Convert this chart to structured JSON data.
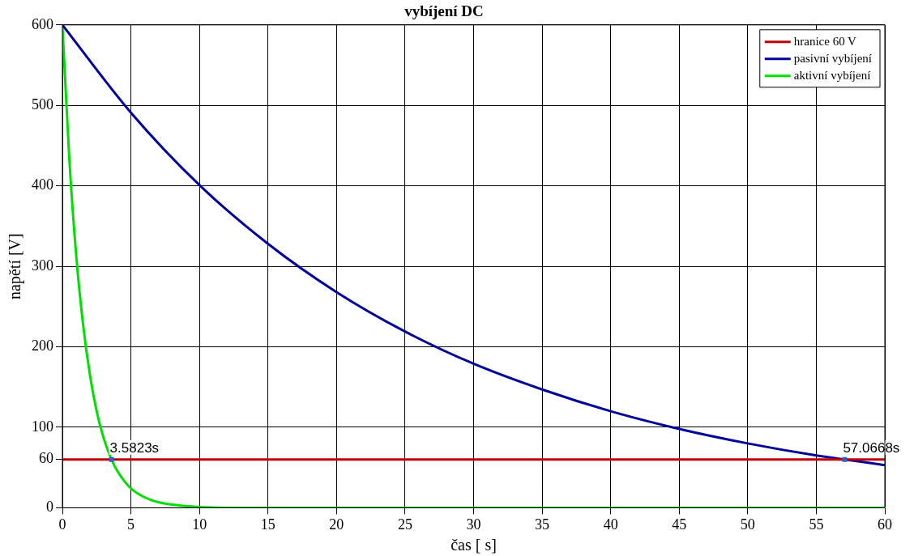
{
  "chart_data": {
    "type": "line",
    "title": "vybíjení DC",
    "xlabel": "čas [ s]",
    "ylabel": "napětí [V]",
    "xlim": [
      0,
      60
    ],
    "xticks": [
      0,
      5,
      10,
      15,
      20,
      25,
      30,
      35,
      40,
      45,
      50,
      55,
      60
    ],
    "ylim": [
      0,
      600
    ],
    "yticks": [
      0,
      60,
      100,
      200,
      300,
      400,
      500,
      600
    ],
    "grid": true,
    "legend": "top right",
    "marker": "none",
    "line_style": "solid",
    "series": [
      {
        "name": "hranice 60 V",
        "color": "#c00000",
        "x": [
          0,
          60
        ],
        "values": [
          60,
          60
        ]
      },
      {
        "name": "pasivní vybíjení",
        "color": "#00009c",
        "x": [
          0,
          5,
          10,
          15,
          20,
          25,
          30,
          35,
          40,
          45,
          50,
          55,
          57.0668,
          60
        ],
        "values": [
          600,
          491,
          401,
          328,
          268,
          219,
          179,
          147,
          120,
          98,
          80,
          65,
          60,
          53
        ]
      },
      {
        "name": "aktivní vybíjení",
        "color": "#00e000",
        "x": [
          0,
          0.5,
          1,
          1.5,
          2,
          2.5,
          3,
          3.5823,
          4,
          5,
          6,
          7,
          8,
          10,
          12,
          15,
          60
        ],
        "values": [
          600,
          435,
          315,
          229,
          166,
          120,
          87,
          60,
          46,
          24,
          13,
          7,
          4,
          1,
          0,
          0,
          0
        ]
      }
    ],
    "annotations": [
      {
        "text": "3.5823s",
        "x": 3.5823,
        "y": 60
      },
      {
        "text": "57.0668s",
        "x": 57.0668,
        "y": 60
      }
    ]
  }
}
